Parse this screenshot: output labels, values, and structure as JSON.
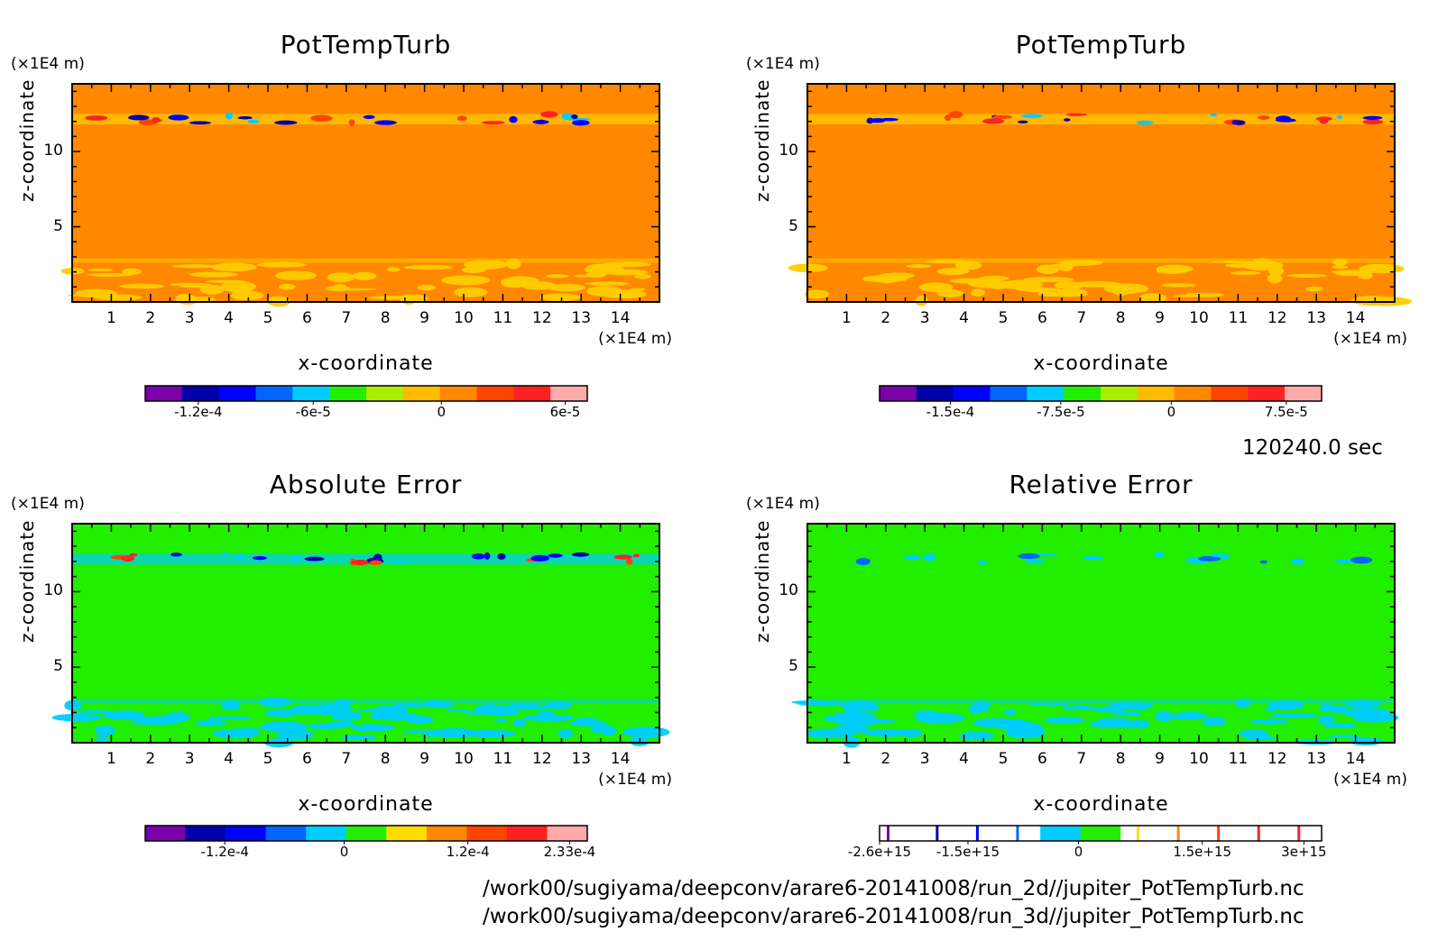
{
  "time_label": "120240.0 sec",
  "footer": {
    "line1": "/work00/sugiyama/deepconv/arare6-20141008/run_2d//jupiter_PotTempTurb.nc",
    "line2": "/work00/sugiyama/deepconv/arare6-20141008/run_3d//jupiter_PotTempTurb.nc"
  },
  "colors": {
    "scale": [
      "#7a00aa",
      "#0000aa",
      "#0000ff",
      "#0066ff",
      "#00ccff",
      "#22ee00",
      "#ffdd00",
      "#ff8800",
      "#ff4400",
      "#ff2222",
      "#ffaaaa"
    ]
  },
  "chart_data": [
    {
      "type": "heatmap",
      "title": "PotTempTurb",
      "xlabel": "x-coordinate",
      "ylabel": "z-coordinate",
      "x_unit": "(×1E4 m)",
      "y_unit": "(×1E4 m)",
      "xlim": [
        0,
        15
      ],
      "ylim": [
        0,
        14.5
      ],
      "x_ticks": [
        "1",
        "2",
        "3",
        "4",
        "5",
        "6",
        "7",
        "8",
        "9",
        "10",
        "11",
        "12",
        "13",
        "14"
      ],
      "y_ticks": [
        "5",
        "10"
      ],
      "background": "#ff8800",
      "colorbar": {
        "labels": [
          "-1.2e-4",
          "-6e-5",
          "0",
          "6e-5"
        ],
        "colors": [
          "#7a00aa",
          "#0000aa",
          "#0000ff",
          "#0066ff",
          "#00ccff",
          "#22ee00",
          "#aaee00",
          "#ffbb00",
          "#ff8800",
          "#ff4400",
          "#ff2222",
          "#ffaaaa"
        ]
      }
    },
    {
      "type": "heatmap",
      "title": "PotTempTurb",
      "xlabel": "x-coordinate",
      "ylabel": "z-coordinate",
      "x_unit": "(×1E4 m)",
      "y_unit": "(×1E4 m)",
      "xlim": [
        0,
        15
      ],
      "ylim": [
        0,
        14.5
      ],
      "x_ticks": [
        "1",
        "2",
        "3",
        "4",
        "5",
        "6",
        "7",
        "8",
        "9",
        "10",
        "11",
        "12",
        "13",
        "14"
      ],
      "y_ticks": [
        "5",
        "10"
      ],
      "background": "#ff8800",
      "colorbar": {
        "labels": [
          "-1.5e-4",
          "-7.5e-5",
          "0",
          "7.5e-5"
        ],
        "colors": [
          "#7a00aa",
          "#0000aa",
          "#0000ff",
          "#0066ff",
          "#00ccff",
          "#22ee00",
          "#aaee00",
          "#ffbb00",
          "#ff8800",
          "#ff4400",
          "#ff2222",
          "#ffaaaa"
        ]
      }
    },
    {
      "type": "heatmap",
      "title": "Absolute Error",
      "xlabel": "x-coordinate",
      "ylabel": "z-coordinate",
      "x_unit": "(×1E4 m)",
      "y_unit": "(×1E4 m)",
      "xlim": [
        0,
        15
      ],
      "ylim": [
        0,
        14.5
      ],
      "x_ticks": [
        "1",
        "2",
        "3",
        "4",
        "5",
        "6",
        "7",
        "8",
        "9",
        "10",
        "11",
        "12",
        "13",
        "14"
      ],
      "y_ticks": [
        "5",
        "10"
      ],
      "background": "#22ee00",
      "colorbar": {
        "labels": [
          "-1.2e-4",
          "0",
          "1.2e-4",
          "2.33e-4"
        ],
        "colors": [
          "#7a00aa",
          "#0000aa",
          "#0000ff",
          "#0066ff",
          "#00ccff",
          "#22ee00",
          "#ffdd00",
          "#ff8800",
          "#ff4400",
          "#ff2222",
          "#ffaaaa"
        ]
      }
    },
    {
      "type": "heatmap",
      "title": "Relative Error",
      "xlabel": "x-coordinate",
      "ylabel": "z-coordinate",
      "x_unit": "(×1E4 m)",
      "y_unit": "(×1E4 m)",
      "xlim": [
        0,
        15
      ],
      "ylim": [
        0,
        14.5
      ],
      "x_ticks": [
        "1",
        "2",
        "3",
        "4",
        "5",
        "6",
        "7",
        "8",
        "9",
        "10",
        "11",
        "12",
        "13",
        "14"
      ],
      "y_ticks": [
        "5",
        "10"
      ],
      "background": "#22ee00",
      "colorbar": {
        "labels": [
          "-2.6e+15",
          "-1.5e+15",
          "0",
          "1.5e+15",
          "3e+15"
        ],
        "colors": [
          "#ffffff",
          "#ffffff",
          "#ffffff",
          "#ffffff",
          "#00ccff",
          "#22ee00",
          "#ffffff",
          "#ffffff",
          "#ffffff",
          "#ffffff",
          "#ffffff"
        ]
      }
    }
  ]
}
